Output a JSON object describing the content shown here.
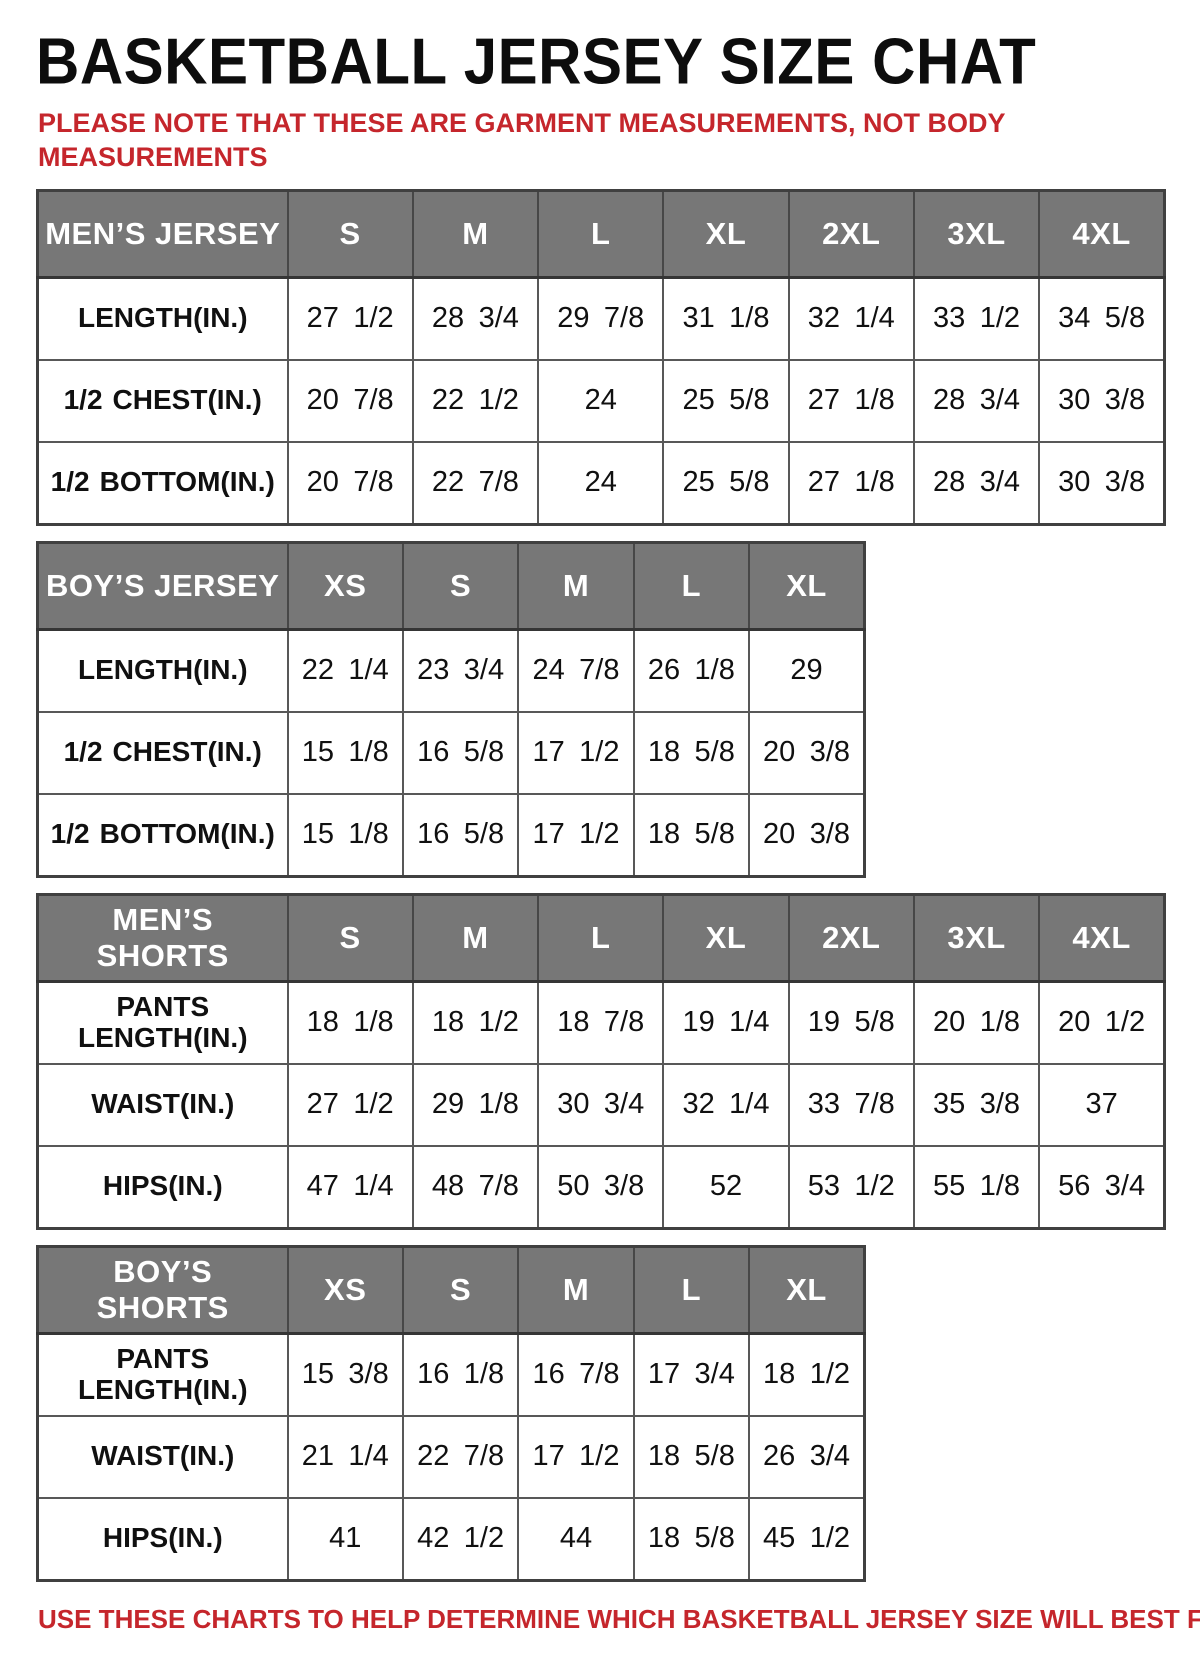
{
  "page": {
    "title": "BASKETBALL JERSEY SIZE CHAT",
    "note_top_line1": "PLEASE NOTE THAT THESE ARE GARMENT MEASUREMENTS, NOT BODY",
    "note_top_line2": "MEASUREMENTS",
    "note_bottom": "USE THESE CHARTS TO HELP DETERMINE WHICH BASKETBALL JERSEY SIZE WILL BEST FIT YOU.",
    "colors": {
      "header_bg": "#777777",
      "header_text": "#ffffff",
      "table_border": "#404040",
      "note_red": "#c5262c",
      "body_text": "#101010"
    }
  },
  "chart_data": [
    {
      "type": "table",
      "title": "MEN’S JERSEY",
      "columns": [
        "MEN’S JERSEY",
        "S",
        "M",
        "L",
        "XL",
        "2XL",
        "3XL",
        "4XL"
      ],
      "rows": [
        [
          "LENGTH(IN.)",
          "27 1/2",
          "28 3/4",
          "29 7/8",
          "31 1/8",
          "32 1/4",
          "33 1/2",
          "34 5/8"
        ],
        [
          "1/2 CHEST(IN.)",
          "20 7/8",
          "22 1/2",
          "24",
          "25 5/8",
          "27 1/8",
          "28 3/4",
          "30 3/8"
        ],
        [
          "1/2 BOTTOM(IN.)",
          "20 7/8",
          "22 7/8",
          "24",
          "25 5/8",
          "27 1/8",
          "28 3/4",
          "30 3/8"
        ]
      ]
    },
    {
      "type": "table",
      "title": "BOY’S JERSEY",
      "columns": [
        "BOY’S JERSEY",
        "XS",
        "S",
        "M",
        "L",
        "XL"
      ],
      "rows": [
        [
          "LENGTH(IN.)",
          "22 1/4",
          "23 3/4",
          "24 7/8",
          "26 1/8",
          "29"
        ],
        [
          "1/2 CHEST(IN.)",
          "15 1/8",
          "16 5/8",
          "17 1/2",
          "18 5/8",
          "20 3/8"
        ],
        [
          "1/2 BOTTOM(IN.)",
          "15 1/8",
          "16 5/8",
          "17 1/2",
          "18 5/8",
          "20 3/8"
        ]
      ]
    },
    {
      "type": "table",
      "title": "MEN’S SHORTS",
      "columns": [
        "MEN’S SHORTS",
        "S",
        "M",
        "L",
        "XL",
        "2XL",
        "3XL",
        "4XL"
      ],
      "rows": [
        [
          "PANTS LENGTH(IN.)",
          "18 1/8",
          "18 1/2",
          "18 7/8",
          "19 1/4",
          "19 5/8",
          "20 1/8",
          "20 1/2"
        ],
        [
          "WAIST(IN.)",
          "27 1/2",
          "29 1/8",
          "30 3/4",
          "32 1/4",
          "33 7/8",
          "35 3/8",
          "37"
        ],
        [
          "HIPS(IN.)",
          "47 1/4",
          "48 7/8",
          "50 3/8",
          "52",
          "53 1/2",
          "55 1/8",
          "56 3/4"
        ]
      ]
    },
    {
      "type": "table",
      "title": "BOY’S SHORTS",
      "columns": [
        "BOY’S SHORTS",
        "XS",
        "S",
        "M",
        "L",
        "XL"
      ],
      "rows": [
        [
          "PANTS LENGTH(IN.)",
          "15 3/8",
          "16 1/8",
          "16 7/8",
          "17 3/4",
          "18 1/2"
        ],
        [
          "WAIST(IN.)",
          "21 1/4",
          "22 7/8",
          "17 1/2",
          "18 5/8",
          "26 3/4"
        ],
        [
          "HIPS(IN.)",
          "41",
          "42 1/2",
          "44",
          "18 5/8",
          "45 1/2"
        ]
      ]
    }
  ]
}
